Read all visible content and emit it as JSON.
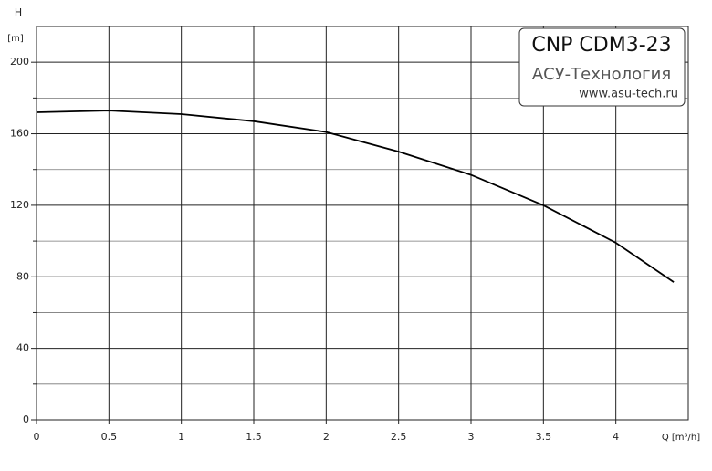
{
  "chart_data": {
    "type": "line",
    "x_label": "Q [m³/h]",
    "y_label": "H",
    "y_unit": "[m]",
    "x": [
      0,
      0.5,
      1,
      1.5,
      2,
      2.5,
      3,
      3.5,
      4,
      4.4
    ],
    "series": [
      {
        "color": "#000000",
        "values": [
          172,
          173,
          171,
          167,
          161,
          150,
          137,
          120,
          99,
          77
        ]
      }
    ],
    "xlim": [
      0,
      4.5
    ],
    "xticks": [
      0,
      0.5,
      1,
      1.5,
      2,
      2.5,
      3,
      3.5,
      4
    ],
    "ylim": [
      0,
      220
    ],
    "yticks": [
      0,
      40,
      80,
      120,
      160,
      200
    ],
    "yminor": [
      20,
      60,
      100,
      140,
      180
    ],
    "grid": true,
    "badge": {
      "model": "CNP CDM3-23",
      "company": "АСУ-Технология",
      "site": "www.asu-tech.ru"
    }
  }
}
